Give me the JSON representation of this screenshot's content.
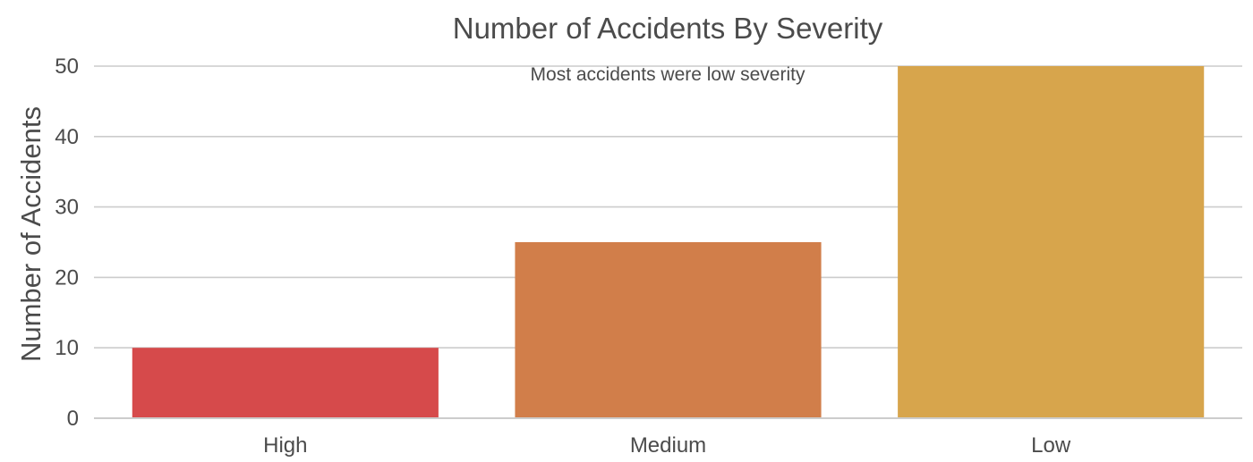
{
  "chart_data": {
    "type": "bar",
    "title": "Number of Accidents By Severity",
    "xlabel": "",
    "ylabel": "Number of Accidents",
    "categories": [
      "High",
      "Medium",
      "Low"
    ],
    "values": [
      10,
      25,
      50
    ],
    "colors": [
      "#d64a4b",
      "#d17e4a",
      "#d7a54c"
    ],
    "ylim": [
      0,
      50
    ],
    "yticks": [
      0,
      10,
      20,
      30,
      40,
      50
    ],
    "grid": true,
    "annotation": "Most accidents were low severity"
  }
}
